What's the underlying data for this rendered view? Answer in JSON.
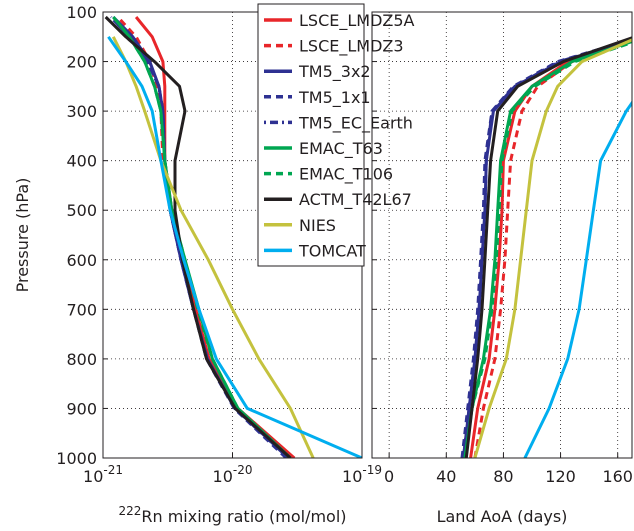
{
  "chart_data": [
    {
      "type": "line",
      "xscale": "log",
      "ylabel": "Pressure (hPa)",
      "xlabel_sup": "222",
      "xlabel": "Rn mixing ratio (mol/mol)",
      "xlim": [
        1e-21,
        1e-19
      ],
      "xticks": [
        {
          "value": 1e-21,
          "label": "10",
          "exponent": "-21"
        },
        {
          "value": 1e-20,
          "label": "10",
          "exponent": "-20"
        },
        {
          "value": 1e-19,
          "label": "10",
          "exponent": "-19"
        }
      ],
      "ylim": [
        1000,
        100
      ],
      "yticks": [
        100,
        200,
        300,
        400,
        500,
        600,
        700,
        800,
        900,
        1000
      ],
      "grid": true,
      "legend": "upper right",
      "y": [
        1000,
        900,
        800,
        700,
        600,
        500,
        400,
        300,
        250,
        200,
        150,
        110
      ],
      "series": [
        {
          "name": "LSCE_LMDZ5A",
          "color": "#e8262a",
          "dash": "solid",
          "values": [
            3e-20,
            1.1e-20,
            6.6e-21,
            5.2e-21,
            4.2e-21,
            3.4e-21,
            3e-21,
            3e-21,
            3e-21,
            2.9e-21,
            2.4e-21,
            1.8e-21
          ]
        },
        {
          "name": "LSCE_LMDZ3",
          "color": "#e8262a",
          "dash": "dashed",
          "values": [
            2.9e-20,
            1.08e-20,
            6.5e-21,
            5.1e-21,
            4.1e-21,
            3.3e-21,
            2.9e-21,
            2.8e-21,
            2.6e-21,
            2.3e-21,
            1.8e-21,
            1.3e-21
          ]
        },
        {
          "name": "TM5_3x2",
          "color": "#2e3192",
          "dash": "solid",
          "values": [
            2.7e-20,
            1.05e-20,
            6.4e-21,
            5e-21,
            4e-21,
            3.3e-21,
            3e-21,
            2.9e-21,
            2.7e-21,
            2.3e-21,
            1.7e-21,
            1.2e-21
          ]
        },
        {
          "name": "TM5_1x1",
          "color": "#2e3192",
          "dash": "dashed",
          "values": [
            2.6e-20,
            1.03e-20,
            6.3e-21,
            5e-21,
            4e-21,
            3.3e-21,
            3e-21,
            2.9e-21,
            2.7e-21,
            2.2e-21,
            1.6e-21,
            1.15e-21
          ]
        },
        {
          "name": "TM5_EC_Earth",
          "color": "#2e3192",
          "dash": "dotted",
          "values": [
            2.7e-20,
            1.04e-20,
            6.4e-21,
            5e-21,
            4e-21,
            3.3e-21,
            3e-21,
            2.9e-21,
            2.7e-21,
            2.2e-21,
            1.6e-21,
            1.15e-21
          ]
        },
        {
          "name": "EMAC_T63",
          "color": "#00a651",
          "dash": "solid",
          "values": [
            2.8e-20,
            1.1e-20,
            7e-21,
            5.5e-21,
            4.3e-21,
            3.4e-21,
            3e-21,
            2.8e-21,
            2.5e-21,
            2.1e-21,
            1.6e-21,
            1.2e-21
          ]
        },
        {
          "name": "EMAC_T106",
          "color": "#00a651",
          "dash": "dashed",
          "values": [
            2.8e-20,
            1.1e-20,
            7e-21,
            5.4e-21,
            4.3e-21,
            3.4e-21,
            3e-21,
            2.8e-21,
            2.5e-21,
            2.1e-21,
            1.6e-21,
            1.2e-21
          ]
        },
        {
          "name": "ACTM_T42L67",
          "color": "#231f20",
          "dash": "solid",
          "values": [
            2.8e-20,
            1.05e-20,
            6.3e-21,
            5e-21,
            4.1e-21,
            3.6e-21,
            3.6e-21,
            4.3e-21,
            3.9e-21,
            2.5e-21,
            1.5e-21,
            1.05e-21
          ]
        },
        {
          "name": "NIES",
          "color": "#c4c23e",
          "dash": "solid",
          "values": [
            4.2e-20,
            2.8e-20,
            1.6e-20,
            1e-20,
            6.5e-21,
            4e-21,
            2.8e-21,
            2.1e-21,
            1.8e-21,
            1.5e-21,
            1.2e-21,
            null
          ]
        },
        {
          "name": "TOMCAT",
          "color": "#00aeef",
          "dash": "solid",
          "values": [
            1e-19,
            1.3e-20,
            7.5e-21,
            5.5e-21,
            4.2e-21,
            3.3e-21,
            2.8e-21,
            2.4e-21,
            2e-21,
            1.5e-21,
            1.1e-21,
            null
          ]
        }
      ]
    },
    {
      "type": "line",
      "xscale": "linear",
      "xlabel": "Land AoA (days)",
      "xlim": [
        -12,
        170
      ],
      "xticks": [
        0,
        40,
        80,
        120,
        160
      ],
      "ylim": [
        1000,
        100
      ],
      "yticks": [
        100,
        200,
        300,
        400,
        500,
        600,
        700,
        800,
        900,
        1000
      ],
      "ytick_labels": false,
      "grid": true,
      "y": [
        1000,
        900,
        800,
        700,
        600,
        500,
        400,
        300,
        250,
        200,
        150
      ],
      "series": [
        {
          "color": "#e8262a",
          "dash": "solid",
          "values": [
            57,
            62,
            70,
            74,
            77,
            79,
            80,
            88,
            100,
            125,
            175
          ]
        },
        {
          "color": "#e8262a",
          "dash": "dashed",
          "values": [
            60,
            66,
            74,
            78,
            81,
            83,
            85,
            93,
            104,
            128,
            178
          ]
        },
        {
          "color": "#2e3192",
          "dash": "solid",
          "values": [
            52,
            56,
            60,
            63,
            65,
            67,
            68,
            73,
            88,
            120,
            178
          ]
        },
        {
          "color": "#2e3192",
          "dash": "dashed",
          "values": [
            51,
            55,
            59,
            62,
            64,
            66,
            67,
            72,
            87,
            118,
            176
          ]
        },
        {
          "color": "#2e3192",
          "dash": "dotted",
          "values": [
            52,
            56,
            60,
            63,
            65,
            67,
            68,
            72,
            88,
            119,
            177
          ]
        },
        {
          "color": "#00a651",
          "dash": "solid",
          "values": [
            53,
            58,
            66,
            71,
            74,
            76,
            78,
            85,
            100,
            128,
            180
          ]
        },
        {
          "color": "#00a651",
          "dash": "dashed",
          "values": [
            53,
            58,
            67,
            72,
            75,
            77,
            79,
            86,
            102,
            130,
            182
          ]
        },
        {
          "color": "#231f20",
          "dash": "solid",
          "values": [
            54,
            58,
            62,
            65,
            67,
            69,
            71,
            76,
            90,
            122,
            172
          ]
        },
        {
          "color": "#c4c23e",
          "dash": "solid",
          "values": [
            60,
            70,
            82,
            88,
            92,
            96,
            100,
            110,
            118,
            135,
            175
          ]
        },
        {
          "color": "#00aeef",
          "dash": "solid",
          "values": [
            95,
            112,
            125,
            133,
            138,
            143,
            148,
            166,
            178,
            null,
            null
          ]
        }
      ]
    }
  ]
}
